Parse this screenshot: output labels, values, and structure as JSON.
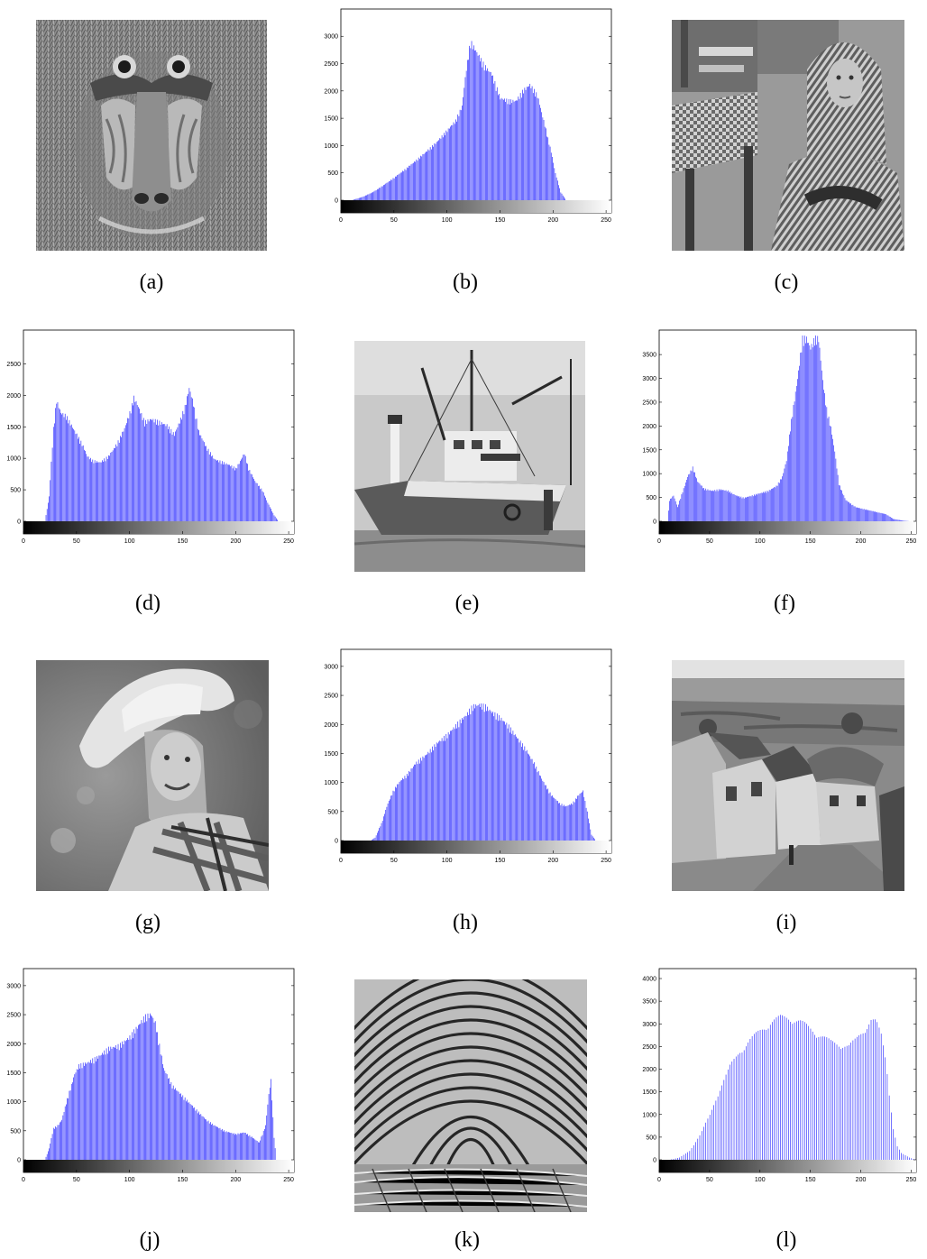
{
  "captions": [
    "(a)",
    "(b)",
    "(c)",
    "(d)",
    "(e)",
    "(f)",
    "(g)",
    "(h)",
    "(i)",
    "(j)",
    "(k)",
    "(l)"
  ],
  "images": {
    "a": {
      "subject": "baboon"
    },
    "c": {
      "subject": "barbara"
    },
    "e": {
      "subject": "boat"
    },
    "g": {
      "subject": "woman-with-hat"
    },
    "i": {
      "subject": "village-street"
    },
    "k": {
      "subject": "fingerprint"
    }
  },
  "colors": {
    "bar": "#1f1fff",
    "axis": "#000000",
    "bg": "#ffffff"
  },
  "chart_data": [
    {
      "id": "b",
      "type": "bar",
      "xticks": [
        0,
        50,
        100,
        150,
        200,
        250
      ],
      "yticks": [
        0,
        500,
        1000,
        1500,
        2000,
        2500,
        3000
      ],
      "xlim": [
        0,
        255
      ],
      "ylim": [
        0,
        3400
      ],
      "profile": [
        [
          0,
          0
        ],
        [
          10,
          0
        ],
        [
          20,
          60
        ],
        [
          30,
          150
        ],
        [
          40,
          280
        ],
        [
          50,
          420
        ],
        [
          60,
          570
        ],
        [
          70,
          730
        ],
        [
          80,
          900
        ],
        [
          90,
          1080
        ],
        [
          100,
          1300
        ],
        [
          108,
          1480
        ],
        [
          114,
          1750
        ],
        [
          118,
          2450
        ],
        [
          122,
          2950
        ],
        [
          128,
          2750
        ],
        [
          135,
          2500
        ],
        [
          142,
          2350
        ],
        [
          150,
          1900
        ],
        [
          158,
          1850
        ],
        [
          165,
          1850
        ],
        [
          172,
          2050
        ],
        [
          178,
          2150
        ],
        [
          185,
          1950
        ],
        [
          192,
          1400
        ],
        [
          198,
          900
        ],
        [
          202,
          500
        ],
        [
          207,
          150
        ],
        [
          212,
          0
        ],
        [
          255,
          0
        ]
      ]
    },
    {
      "id": "d",
      "type": "bar",
      "xticks": [
        0,
        50,
        100,
        150,
        200,
        250
      ],
      "yticks": [
        0,
        500,
        1000,
        1500,
        2000,
        2500
      ],
      "xlim": [
        0,
        255
      ],
      "ylim": [
        0,
        2950
      ],
      "profile": [
        [
          0,
          0
        ],
        [
          20,
          0
        ],
        [
          24,
          400
        ],
        [
          28,
          1500
        ],
        [
          31,
          1950
        ],
        [
          35,
          1750
        ],
        [
          40,
          1700
        ],
        [
          45,
          1550
        ],
        [
          50,
          1400
        ],
        [
          55,
          1250
        ],
        [
          60,
          1050
        ],
        [
          65,
          980
        ],
        [
          72,
          950
        ],
        [
          80,
          1050
        ],
        [
          88,
          1250
        ],
        [
          95,
          1500
        ],
        [
          100,
          1750
        ],
        [
          104,
          2000
        ],
        [
          108,
          1850
        ],
        [
          114,
          1600
        ],
        [
          120,
          1650
        ],
        [
          128,
          1600
        ],
        [
          135,
          1550
        ],
        [
          142,
          1400
        ],
        [
          148,
          1650
        ],
        [
          152,
          1850
        ],
        [
          156,
          2150
        ],
        [
          160,
          1900
        ],
        [
          165,
          1450
        ],
        [
          172,
          1200
        ],
        [
          180,
          1000
        ],
        [
          188,
          950
        ],
        [
          195,
          900
        ],
        [
          200,
          850
        ],
        [
          205,
          1000
        ],
        [
          208,
          1100
        ],
        [
          212,
          850
        ],
        [
          218,
          650
        ],
        [
          225,
          500
        ],
        [
          230,
          300
        ],
        [
          236,
          100
        ],
        [
          240,
          0
        ],
        [
          255,
          0
        ]
      ]
    },
    {
      "id": "f",
      "type": "bar",
      "xticks": [
        0,
        50,
        100,
        150,
        200,
        250
      ],
      "yticks": [
        0,
        500,
        1000,
        1500,
        2000,
        2500,
        3000,
        3500
      ],
      "xlim": [
        0,
        255
      ],
      "ylim": [
        0,
        3900
      ],
      "profile": [
        [
          0,
          0
        ],
        [
          8,
          0
        ],
        [
          10,
          450
        ],
        [
          14,
          550
        ],
        [
          18,
          300
        ],
        [
          24,
          700
        ],
        [
          28,
          950
        ],
        [
          33,
          1150
        ],
        [
          38,
          850
        ],
        [
          44,
          700
        ],
        [
          52,
          650
        ],
        [
          60,
          680
        ],
        [
          68,
          650
        ],
        [
          76,
          550
        ],
        [
          84,
          500
        ],
        [
          92,
          550
        ],
        [
          100,
          600
        ],
        [
          108,
          650
        ],
        [
          116,
          750
        ],
        [
          122,
          950
        ],
        [
          126,
          1300
        ],
        [
          130,
          2000
        ],
        [
          134,
          2600
        ],
        [
          138,
          3200
        ],
        [
          142,
          3900
        ],
        [
          146,
          3900
        ],
        [
          150,
          3700
        ],
        [
          154,
          3900
        ],
        [
          158,
          3900
        ],
        [
          162,
          3000
        ],
        [
          166,
          2400
        ],
        [
          170,
          2000
        ],
        [
          174,
          1500
        ],
        [
          178,
          800
        ],
        [
          185,
          450
        ],
        [
          195,
          300
        ],
        [
          205,
          250
        ],
        [
          215,
          200
        ],
        [
          225,
          150
        ],
        [
          232,
          50
        ],
        [
          240,
          20
        ],
        [
          248,
          0
        ],
        [
          255,
          0
        ]
      ]
    },
    {
      "id": "h",
      "type": "bar",
      "xticks": [
        0,
        50,
        100,
        150,
        200,
        250
      ],
      "yticks": [
        0,
        500,
        1000,
        1500,
        2000,
        2500,
        3000
      ],
      "xlim": [
        0,
        255
      ],
      "ylim": [
        0,
        3200
      ],
      "profile": [
        [
          0,
          0
        ],
        [
          28,
          0
        ],
        [
          32,
          50
        ],
        [
          38,
          300
        ],
        [
          44,
          650
        ],
        [
          50,
          900
        ],
        [
          56,
          1050
        ],
        [
          62,
          1150
        ],
        [
          70,
          1350
        ],
        [
          80,
          1500
        ],
        [
          90,
          1700
        ],
        [
          100,
          1850
        ],
        [
          110,
          2050
        ],
        [
          118,
          2200
        ],
        [
          124,
          2350
        ],
        [
          130,
          2380
        ],
        [
          136,
          2350
        ],
        [
          142,
          2250
        ],
        [
          150,
          2150
        ],
        [
          158,
          2000
        ],
        [
          166,
          1800
        ],
        [
          174,
          1600
        ],
        [
          182,
          1350
        ],
        [
          190,
          1050
        ],
        [
          198,
          800
        ],
        [
          206,
          650
        ],
        [
          212,
          600
        ],
        [
          218,
          650
        ],
        [
          224,
          800
        ],
        [
          228,
          870
        ],
        [
          232,
          500
        ],
        [
          236,
          100
        ],
        [
          240,
          0
        ],
        [
          255,
          0
        ]
      ]
    },
    {
      "id": "j",
      "type": "bar",
      "xticks": [
        0,
        50,
        100,
        150,
        200,
        250
      ],
      "yticks": [
        0,
        500,
        1000,
        1500,
        2000,
        2500,
        3000
      ],
      "xlim": [
        0,
        255
      ],
      "ylim": [
        0,
        3200
      ],
      "profile": [
        [
          0,
          0
        ],
        [
          20,
          0
        ],
        [
          24,
          200
        ],
        [
          28,
          550
        ],
        [
          32,
          600
        ],
        [
          36,
          700
        ],
        [
          40,
          1000
        ],
        [
          44,
          1250
        ],
        [
          48,
          1500
        ],
        [
          52,
          1650
        ],
        [
          60,
          1700
        ],
        [
          70,
          1800
        ],
        [
          80,
          1950
        ],
        [
          90,
          2000
        ],
        [
          100,
          2150
        ],
        [
          108,
          2350
        ],
        [
          114,
          2500
        ],
        [
          120,
          2550
        ],
        [
          124,
          2400
        ],
        [
          128,
          2000
        ],
        [
          132,
          1600
        ],
        [
          140,
          1300
        ],
        [
          148,
          1150
        ],
        [
          156,
          1000
        ],
        [
          164,
          850
        ],
        [
          172,
          700
        ],
        [
          180,
          600
        ],
        [
          190,
          500
        ],
        [
          200,
          450
        ],
        [
          208,
          480
        ],
        [
          215,
          400
        ],
        [
          222,
          300
        ],
        [
          228,
          600
        ],
        [
          231,
          1150
        ],
        [
          233,
          1400
        ],
        [
          236,
          400
        ],
        [
          238,
          0
        ],
        [
          255,
          0
        ]
      ]
    },
    {
      "id": "l",
      "type": "bar",
      "xticks": [
        0,
        50,
        100,
        150,
        200,
        250
      ],
      "yticks": [
        0,
        500,
        1000,
        1500,
        2000,
        2500,
        3000,
        3500,
        4000
      ],
      "xlim": [
        0,
        255
      ],
      "ylim": [
        0,
        4100
      ],
      "profile": [
        [
          0,
          0
        ],
        [
          10,
          0
        ],
        [
          20,
          50
        ],
        [
          30,
          200
        ],
        [
          40,
          550
        ],
        [
          50,
          1000
        ],
        [
          60,
          1600
        ],
        [
          70,
          2100
        ],
        [
          80,
          2450
        ],
        [
          90,
          2700
        ],
        [
          100,
          2900
        ],
        [
          110,
          3100
        ],
        [
          120,
          3200
        ],
        [
          130,
          3200
        ],
        [
          140,
          3100
        ],
        [
          150,
          2950
        ],
        [
          160,
          2800
        ],
        [
          170,
          2650
        ],
        [
          180,
          2600
        ],
        [
          188,
          2550
        ],
        [
          195,
          2700
        ],
        [
          205,
          3000
        ],
        [
          210,
          3150
        ],
        [
          215,
          3100
        ],
        [
          220,
          2800
        ],
        [
          225,
          2200
        ],
        [
          228,
          1500
        ],
        [
          232,
          700
        ],
        [
          236,
          300
        ],
        [
          240,
          150
        ],
        [
          248,
          50
        ],
        [
          255,
          0
        ]
      ]
    }
  ]
}
